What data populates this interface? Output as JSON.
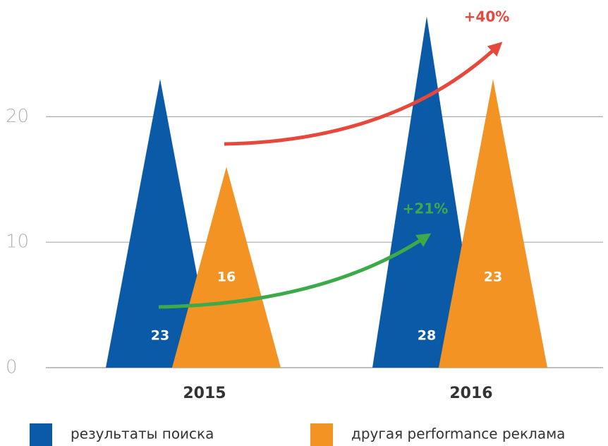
{
  "chart_data": {
    "type": "triangle-bar",
    "categories": [
      "2015",
      "2016"
    ],
    "series": [
      {
        "name": "результаты поиска",
        "color": "#0a5aa8",
        "values": [
          23,
          28
        ]
      },
      {
        "name": "другая performance реклама",
        "color": "#f39324",
        "values": [
          16,
          23
        ]
      }
    ],
    "ylim": [
      0,
      29.3
    ],
    "yticks": [
      0,
      10,
      20
    ],
    "grid": true,
    "annotations": [
      {
        "text": "+40%",
        "color": "#e8473b"
      },
      {
        "text": "+21%",
        "color": "#3daa4a"
      }
    ]
  }
}
